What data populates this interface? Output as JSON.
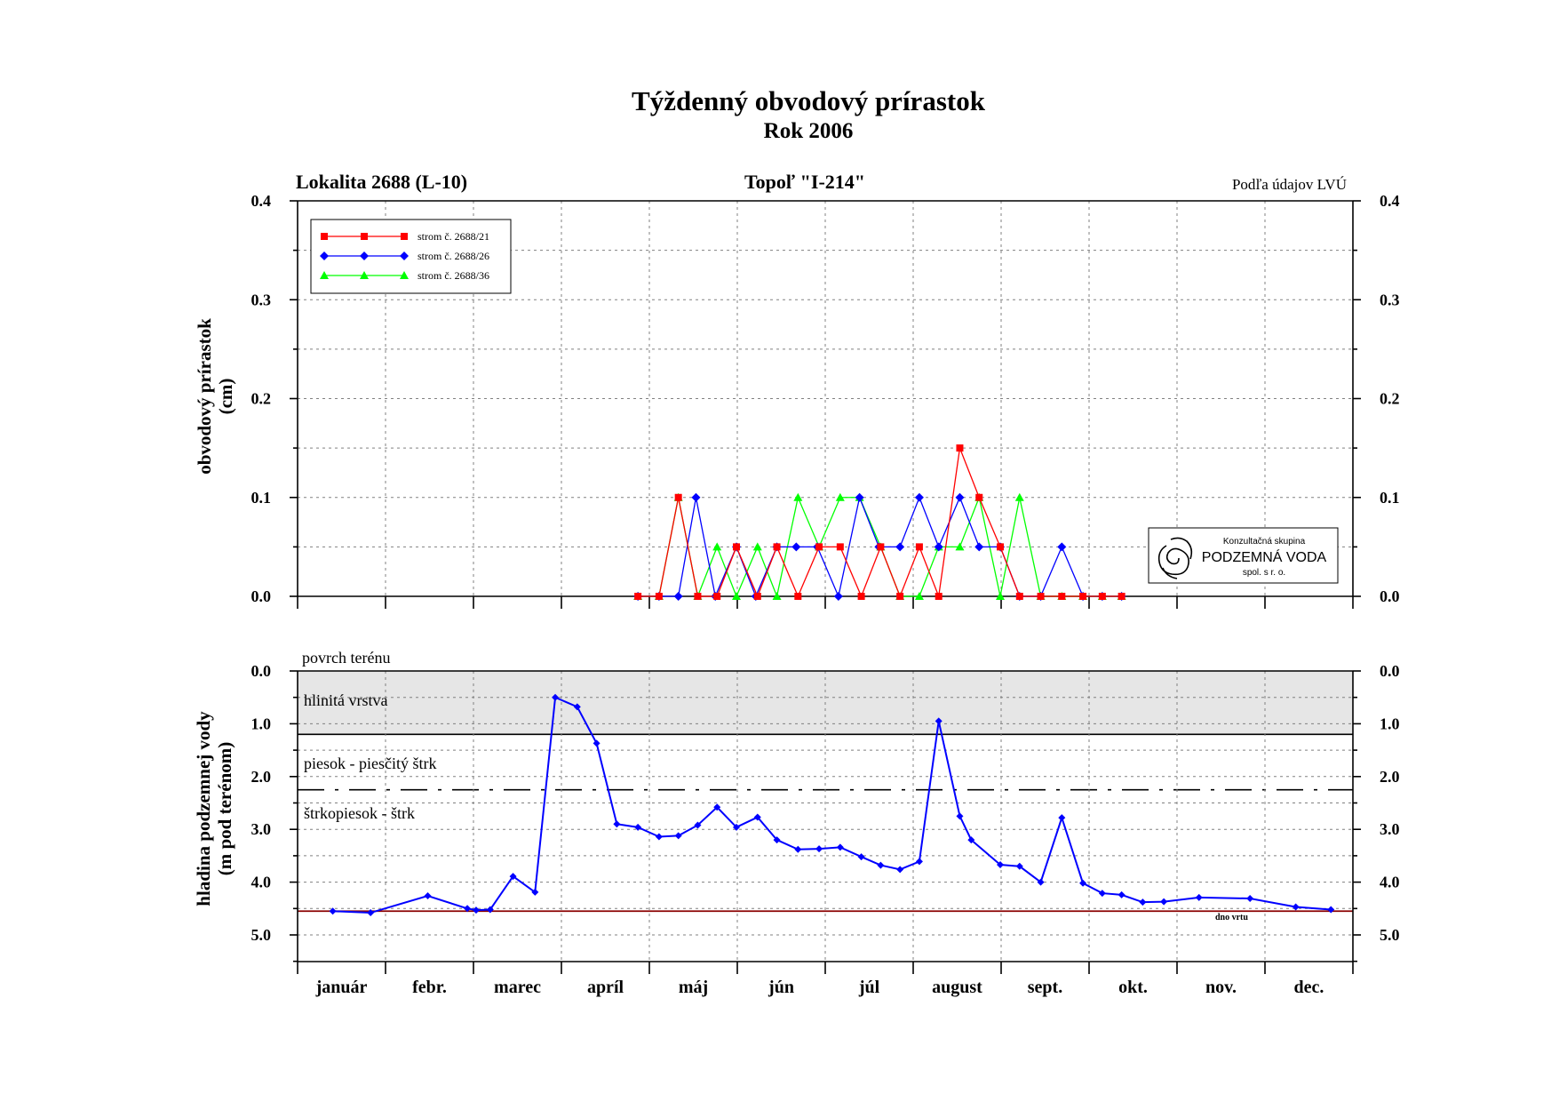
{
  "header": {
    "title": "Týždenný obvodový prírastok",
    "subtitle": "Rok 2006",
    "locality": "Lokalita 2688 (L-10)",
    "species": "Topoľ \"I-214\"",
    "source": "Podľa údajov LVÚ"
  },
  "logo": {
    "line1": "Konzultačná skupina",
    "line2": "PODZEMNÁ VODA",
    "line3": "spol. s r. o."
  },
  "colors": {
    "red": "#ff0000",
    "blue": "#0000ff",
    "green": "#00ff00",
    "groundwater": "#0000ff",
    "bottom_line": "#8b0000",
    "clay_fill": "#e6e6e6"
  },
  "chart_data": [
    {
      "type": "line",
      "ylabel": "obvodový prírastok (cm)",
      "ylabel_lines": [
        "obvodový prírastok",
        "(cm)"
      ],
      "ylim": [
        0,
        0.4
      ],
      "yticks": [
        "0.0",
        "0.1",
        "0.2",
        "0.3",
        "0.4"
      ],
      "x_unit": "month (fractional, 0 = 1 Jan)",
      "xlim": [
        0,
        12
      ],
      "months": [
        "január",
        "febr.",
        "marec",
        "apríl",
        "máj",
        "jún",
        "júl",
        "august",
        "sept.",
        "okt.",
        "nov.",
        "dec."
      ],
      "grid": true,
      "legend_position": "top-left",
      "series": [
        {
          "name": "strom č. 2688/21",
          "color": "#ff0000",
          "marker": "square",
          "points": [
            [
              3.87,
              0
            ],
            [
              4.11,
              0
            ],
            [
              4.33,
              0.1
            ],
            [
              4.55,
              0
            ],
            [
              4.77,
              0
            ],
            [
              4.99,
              0.05
            ],
            [
              5.23,
              0
            ],
            [
              5.45,
              0.05
            ],
            [
              5.69,
              0
            ],
            [
              5.93,
              0.05
            ],
            [
              6.17,
              0.05
            ],
            [
              6.41,
              0
            ],
            [
              6.63,
              0.05
            ],
            [
              6.85,
              0
            ],
            [
              7.07,
              0.05
            ],
            [
              7.29,
              0
            ],
            [
              7.53,
              0.15
            ],
            [
              7.75,
              0.1
            ],
            [
              7.99,
              0.05
            ],
            [
              8.21,
              0
            ],
            [
              8.45,
              0
            ],
            [
              8.69,
              0
            ],
            [
              8.93,
              0
            ],
            [
              9.15,
              0
            ],
            [
              9.37,
              0
            ]
          ]
        },
        {
          "name": "strom č. 2688/26",
          "color": "#0000ff",
          "marker": "diamond",
          "points": [
            [
              3.87,
              0
            ],
            [
              4.11,
              0
            ],
            [
              4.33,
              0
            ],
            [
              4.53,
              0.1
            ],
            [
              4.75,
              0
            ],
            [
              4.99,
              0.05
            ],
            [
              5.21,
              0
            ],
            [
              5.45,
              0.05
            ],
            [
              5.67,
              0.05
            ],
            [
              5.91,
              0.05
            ],
            [
              6.15,
              0
            ],
            [
              6.39,
              0.1
            ],
            [
              6.61,
              0.05
            ],
            [
              6.85,
              0.05
            ],
            [
              7.07,
              0.1
            ],
            [
              7.29,
              0.05
            ],
            [
              7.53,
              0.1
            ],
            [
              7.75,
              0.05
            ],
            [
              7.99,
              0.05
            ],
            [
              8.21,
              0
            ],
            [
              8.45,
              0
            ],
            [
              8.69,
              0.05
            ],
            [
              8.93,
              0
            ],
            [
              9.15,
              0
            ],
            [
              9.37,
              0
            ]
          ]
        },
        {
          "name": "strom č. 2688/36",
          "color": "#00ff00",
          "marker": "triangle",
          "points": [
            [
              3.87,
              0
            ],
            [
              4.11,
              0
            ],
            [
              4.33,
              0.1
            ],
            [
              4.55,
              0
            ],
            [
              4.77,
              0.05
            ],
            [
              4.99,
              0
            ],
            [
              5.23,
              0.05
            ],
            [
              5.45,
              0
            ],
            [
              5.69,
              0.1
            ],
            [
              5.93,
              0.05
            ],
            [
              6.17,
              0.1
            ],
            [
              6.39,
              0.1
            ],
            [
              6.63,
              0.05
            ],
            [
              6.85,
              0
            ],
            [
              7.07,
              0
            ],
            [
              7.29,
              0.05
            ],
            [
              7.53,
              0.05
            ],
            [
              7.75,
              0.1
            ],
            [
              7.99,
              0
            ],
            [
              8.21,
              0.1
            ],
            [
              8.45,
              0
            ],
            [
              8.69,
              0
            ],
            [
              8.93,
              0
            ],
            [
              9.15,
              0
            ],
            [
              9.37,
              0
            ]
          ]
        }
      ]
    },
    {
      "type": "line",
      "ylabel": "hladina podzemnej vody (m pod terénom)",
      "ylabel_lines": [
        "hladina podzemnej vody",
        "(m pod terénom)"
      ],
      "ylim": [
        5.5,
        0
      ],
      "yticks": [
        "0.0",
        "1.0",
        "2.0",
        "3.0",
        "4.0",
        "5.0"
      ],
      "xlim": [
        0,
        12
      ],
      "grid": true,
      "layers": [
        {
          "name": "povrch terénu",
          "depth": 0
        },
        {
          "name": "hlinitá vrstva",
          "from": 0,
          "to": 1.2
        },
        {
          "name": "piesok - piesčitý štrk",
          "from": 1.2,
          "to": 2.25
        },
        {
          "name": "štrkopiesok - štrk",
          "from": 2.25
        }
      ],
      "bottom_label": "dno vrtu",
      "bottom_depth": 4.55,
      "series": [
        {
          "name": "",
          "color": "#0000ff",
          "marker": "diamond",
          "points": [
            [
              0.4,
              4.55
            ],
            [
              0.83,
              4.58
            ],
            [
              1.48,
              4.26
            ],
            [
              1.93,
              4.5
            ],
            [
              2.03,
              4.53
            ],
            [
              2.19,
              4.52
            ],
            [
              2.45,
              3.89
            ],
            [
              2.7,
              4.19
            ],
            [
              2.93,
              0.5
            ],
            [
              3.18,
              0.68
            ],
            [
              3.4,
              1.37
            ],
            [
              3.63,
              2.9
            ],
            [
              3.87,
              2.96
            ],
            [
              4.11,
              3.14
            ],
            [
              4.33,
              3.12
            ],
            [
              4.55,
              2.92
            ],
            [
              4.77,
              2.58
            ],
            [
              4.99,
              2.96
            ],
            [
              5.23,
              2.77
            ],
            [
              5.45,
              3.2
            ],
            [
              5.69,
              3.38
            ],
            [
              5.93,
              3.37
            ],
            [
              6.17,
              3.34
            ],
            [
              6.41,
              3.52
            ],
            [
              6.63,
              3.68
            ],
            [
              6.85,
              3.76
            ],
            [
              7.07,
              3.61
            ],
            [
              7.29,
              0.95
            ],
            [
              7.53,
              2.75
            ],
            [
              7.66,
              3.2
            ],
            [
              7.99,
              3.67
            ],
            [
              8.21,
              3.7
            ],
            [
              8.45,
              4.0
            ],
            [
              8.69,
              2.78
            ],
            [
              8.93,
              4.02
            ],
            [
              9.15,
              4.21
            ],
            [
              9.37,
              4.24
            ],
            [
              9.61,
              4.38
            ],
            [
              9.85,
              4.37
            ],
            [
              10.25,
              4.29
            ],
            [
              10.83,
              4.31
            ],
            [
              11.35,
              4.47
            ],
            [
              11.75,
              4.52
            ]
          ]
        }
      ]
    }
  ]
}
